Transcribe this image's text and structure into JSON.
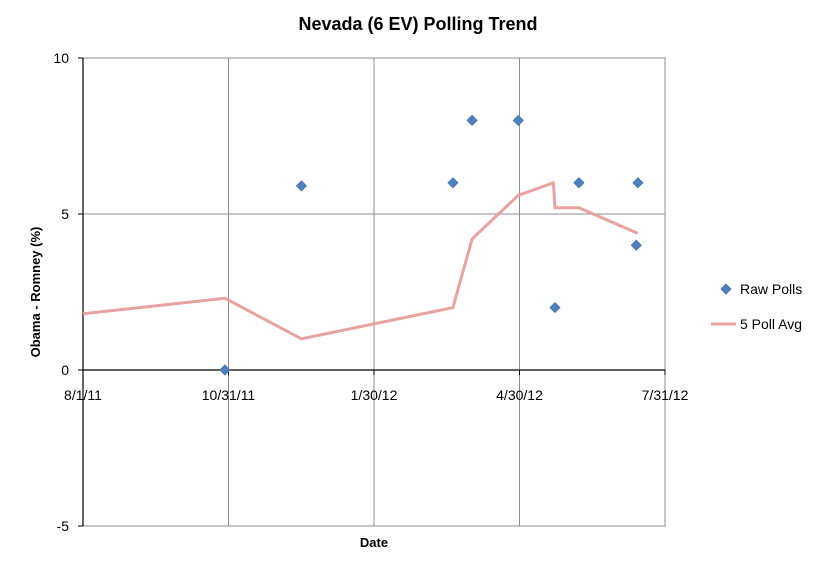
{
  "chart_data": {
    "type": "scatter",
    "title": "Nevada (6 EV) Polling Trend",
    "xlabel": "Date",
    "ylabel": "Obama - Romney (%)",
    "xlim": [
      "2011-08-01",
      "2012-07-31"
    ],
    "ylim": [
      -5,
      10
    ],
    "x_ticks": [
      "8/1/11",
      "10/31/11",
      "1/30/12",
      "4/30/12",
      "7/31/12"
    ],
    "y_ticks": [
      "-5",
      "0",
      "5",
      "10"
    ],
    "grid": true,
    "legend_position": "right",
    "series": [
      {
        "name": "Raw Polls",
        "type": "scatter",
        "marker": "diamond",
        "color": "#4F81BD",
        "points": [
          {
            "x": "2011-10-29",
            "y": 0
          },
          {
            "x": "2011-12-16",
            "y": 5.9
          },
          {
            "x": "2012-03-20",
            "y": 6
          },
          {
            "x": "2012-04-01",
            "y": 8
          },
          {
            "x": "2012-04-30",
            "y": 8
          },
          {
            "x": "2012-05-23",
            "y": 2
          },
          {
            "x": "2012-06-07",
            "y": 6
          },
          {
            "x": "2012-07-13",
            "y": 4
          },
          {
            "x": "2012-07-14",
            "y": 6
          }
        ]
      },
      {
        "name": "5 Poll Avg",
        "type": "line",
        "color": "#E6A3A0",
        "points": [
          {
            "x": "2011-08-01",
            "y": 1.8
          },
          {
            "x": "2011-10-29",
            "y": 2.3
          },
          {
            "x": "2011-12-16",
            "y": 1
          },
          {
            "x": "2012-03-20",
            "y": 2
          },
          {
            "x": "2012-04-01",
            "y": 4.2
          },
          {
            "x": "2012-04-30",
            "y": 5.6
          },
          {
            "x": "2012-05-22",
            "y": 6
          },
          {
            "x": "2012-05-23",
            "y": 5.2
          },
          {
            "x": "2012-06-07",
            "y": 5.2
          },
          {
            "x": "2012-07-13",
            "y": 4.4
          },
          {
            "x": "2012-07-14",
            "y": 4.4
          }
        ]
      }
    ]
  }
}
